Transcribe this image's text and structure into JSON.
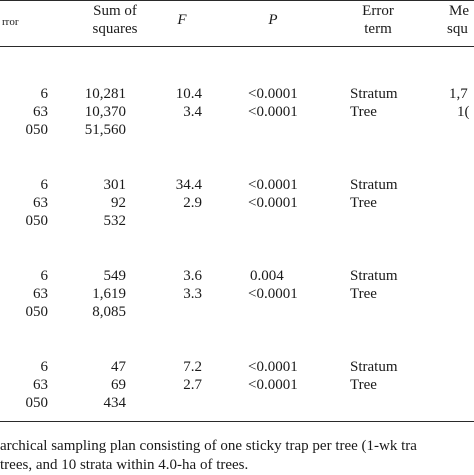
{
  "headers": {
    "col0": "rror",
    "sum_of_squares_line1": "Sum of",
    "sum_of_squares_line2": "squares",
    "f": "F",
    "p": "P",
    "error_term_line1": "Error",
    "error_term_line2": "term",
    "mean_line1": "Me",
    "mean_line2": "squ"
  },
  "groups": [
    {
      "rows": [
        {
          "df": "6",
          "ss": "10,281",
          "f": "10.4",
          "p": "<0.0001",
          "term": "Stratum",
          "ms": "1,7"
        },
        {
          "df": "63",
          "ss": "10,370",
          "f": "3.4",
          "p": "<0.0001",
          "term": "Tree",
          "ms": "1("
        },
        {
          "df": "050",
          "ss": "51,560",
          "f": "",
          "p": "",
          "term": "",
          "ms": ""
        }
      ]
    },
    {
      "rows": [
        {
          "df": "6",
          "ss": "301",
          "f": "34.4",
          "p": "<0.0001",
          "term": "Stratum",
          "ms": ""
        },
        {
          "df": "63",
          "ss": "92",
          "f": "2.9",
          "p": "<0.0001",
          "term": "Tree",
          "ms": ""
        },
        {
          "df": "050",
          "ss": "532",
          "f": "",
          "p": "",
          "term": "",
          "ms": ""
        }
      ]
    },
    {
      "rows": [
        {
          "df": "6",
          "ss": "549",
          "f": "3.6",
          "p": "0.004",
          "term": "Stratum",
          "ms": ""
        },
        {
          "df": "63",
          "ss": "1,619",
          "f": "3.3",
          "p": "<0.0001",
          "term": "Tree",
          "ms": ""
        },
        {
          "df": "050",
          "ss": "8,085",
          "f": "",
          "p": "",
          "term": "",
          "ms": ""
        }
      ]
    },
    {
      "rows": [
        {
          "df": "6",
          "ss": "47",
          "f": "7.2",
          "p": "<0.0001",
          "term": "Stratum",
          "ms": ""
        },
        {
          "df": "63",
          "ss": "69",
          "f": "2.7",
          "p": "<0.0001",
          "term": "Tree",
          "ms": ""
        },
        {
          "df": "050",
          "ss": "434",
          "f": "",
          "p": "",
          "term": "",
          "ms": ""
        }
      ]
    }
  ],
  "footnote": {
    "line1": "archical sampling plan consisting of one sticky trap per tree (1-wk tra",
    "line2": "trees, and 10 strata within 4.0-ha of trees."
  }
}
